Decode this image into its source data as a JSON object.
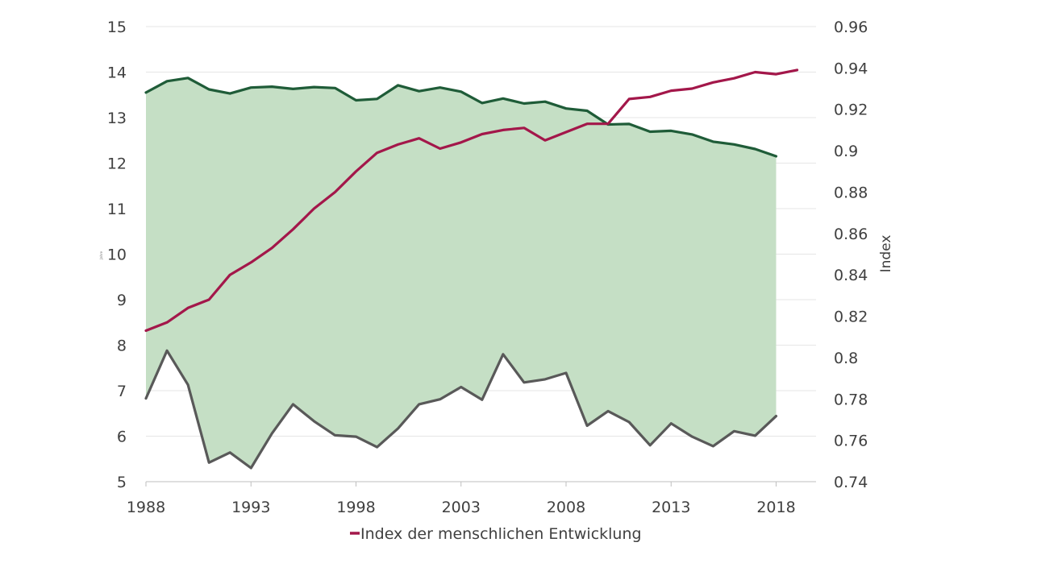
{
  "chart_data": {
    "type": "line",
    "x": [
      1988,
      1989,
      1990,
      1991,
      1992,
      1993,
      1994,
      1995,
      1996,
      1997,
      1998,
      1999,
      2000,
      2001,
      2002,
      2003,
      2004,
      2005,
      2006,
      2007,
      2008,
      2009,
      2010,
      2011,
      2012,
      2013,
      2014,
      2015,
      2016,
      2017,
      2018,
      2019
    ],
    "xticks": [
      "1988",
      "1993",
      "1998",
      "2003",
      "2008",
      "2013",
      "2018"
    ],
    "xlim": [
      1988,
      2019.9
    ],
    "left_axis": {
      "label": "",
      "tiny_label": "Jahre",
      "ylim": [
        5,
        15
      ],
      "ticks": [
        "5",
        "6",
        "7",
        "8",
        "9",
        "10",
        "11",
        "12",
        "13",
        "14",
        "15"
      ]
    },
    "right_axis": {
      "label": "Index",
      "ylim": [
        0.74,
        0.96
      ],
      "ticks": [
        "0.74",
        "0.76",
        "0.78",
        "0.8",
        "0.82",
        "0.84",
        "0.86",
        "0.88",
        "0.9",
        "0.92",
        "0.94",
        "0.96"
      ]
    },
    "band": {
      "color": "#c5dfc5",
      "upper": [
        13.55,
        13.8,
        13.87,
        13.62,
        13.53,
        13.66,
        13.68,
        13.63,
        13.67,
        13.65,
        13.38,
        13.41,
        13.71,
        13.58,
        13.66,
        13.57,
        13.32,
        13.42,
        13.31,
        13.35,
        13.2,
        13.15,
        12.85,
        12.86,
        12.69,
        12.71,
        12.63,
        12.47,
        12.41,
        12.31,
        12.15,
        null
      ],
      "lower": [
        6.83,
        7.88,
        7.13,
        5.42,
        5.64,
        5.3,
        6.06,
        6.7,
        6.33,
        6.02,
        5.99,
        5.76,
        6.17,
        6.7,
        6.81,
        7.08,
        6.8,
        7.8,
        7.18,
        7.25,
        7.39,
        6.23,
        6.55,
        6.31,
        5.8,
        6.28,
        5.99,
        5.78,
        6.11,
        6.01,
        6.44,
        null
      ]
    },
    "series": [
      {
        "axis": "left",
        "color": "#1f5c38",
        "width": 3.2,
        "values": [
          13.55,
          13.8,
          13.87,
          13.62,
          13.53,
          13.66,
          13.68,
          13.63,
          13.67,
          13.65,
          13.38,
          13.41,
          13.71,
          13.58,
          13.66,
          13.57,
          13.32,
          13.42,
          13.31,
          13.35,
          13.2,
          13.15,
          12.85,
          12.86,
          12.69,
          12.71,
          12.63,
          12.47,
          12.41,
          12.31,
          12.15,
          null
        ]
      },
      {
        "axis": "left",
        "color": "#595959",
        "width": 3.2,
        "values": [
          6.83,
          7.88,
          7.13,
          5.42,
          5.64,
          5.3,
          6.06,
          6.7,
          6.33,
          6.02,
          5.99,
          5.76,
          6.17,
          6.7,
          6.81,
          7.08,
          6.8,
          7.8,
          7.18,
          7.25,
          7.39,
          6.23,
          6.55,
          6.31,
          5.8,
          6.28,
          5.99,
          5.78,
          6.11,
          6.01,
          6.44,
          null
        ]
      },
      {
        "axis": "right",
        "color": "#a3174a",
        "width": 3.2,
        "name": "Index der menschlichen Entwicklung",
        "values": [
          0.813,
          0.817,
          0.824,
          0.828,
          0.84,
          0.846,
          0.853,
          0.862,
          0.872,
          0.88,
          0.89,
          0.899,
          0.903,
          0.906,
          0.901,
          0.904,
          0.908,
          0.91,
          0.911,
          0.905,
          0.909,
          0.913,
          0.913,
          0.925,
          0.926,
          0.929,
          0.93,
          0.933,
          0.935,
          0.938,
          0.937,
          0.939
        ]
      }
    ],
    "legend": {
      "position": "bottom",
      "entries": [
        "Index der menschlichen Entwicklung"
      ],
      "color": "#a3174a"
    },
    "grid": true
  }
}
